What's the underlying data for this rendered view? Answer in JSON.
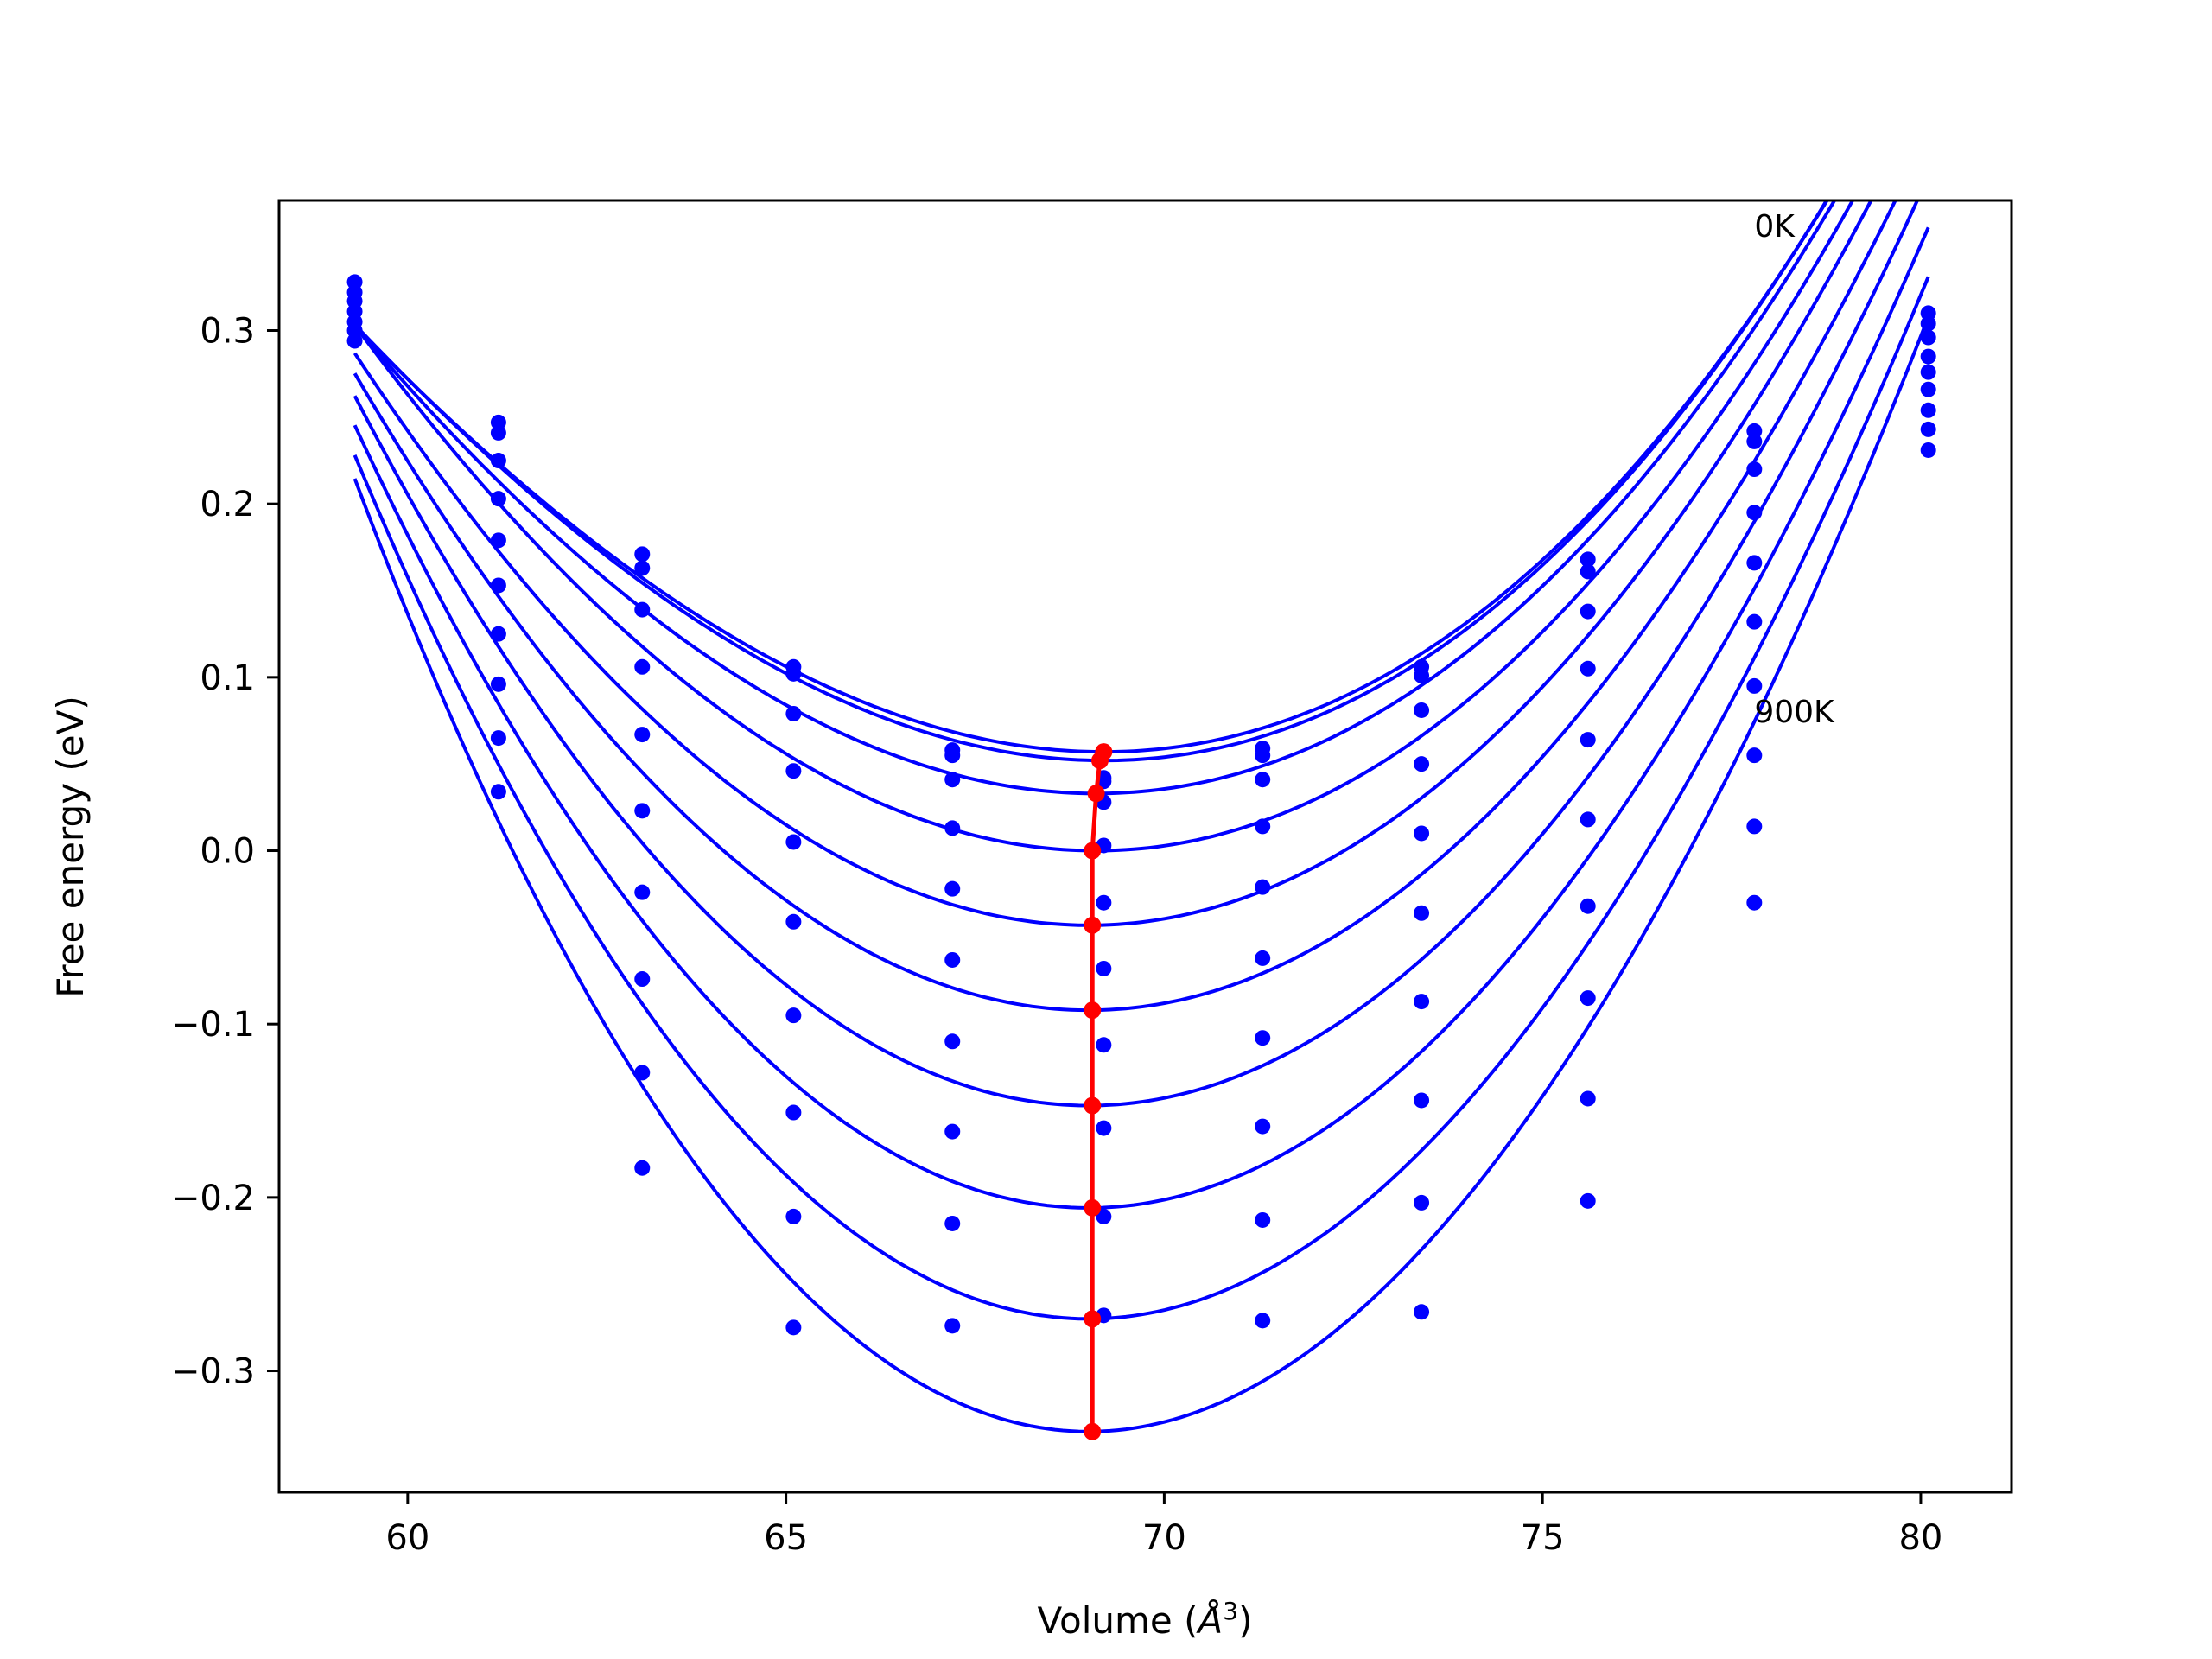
{
  "chart_data": {
    "type": "scatter",
    "title": "",
    "xlabel_prefix": "Volume (",
    "xlabel_unit": "Å",
    "xlabel_sup": "3",
    "xlabel_suffix": ")",
    "ylabel": "Free energy (eV)",
    "xlim": [
      58.3,
      81.2
    ],
    "ylim": [
      -0.37,
      0.375
    ],
    "xticks": [
      60,
      65,
      70,
      75,
      80
    ],
    "xtick_labels": [
      "60",
      "65",
      "70",
      "75",
      "80"
    ],
    "yticks": [
      -0.3,
      -0.2,
      -0.1,
      0.0,
      0.1,
      0.2,
      0.3
    ],
    "ytick_labels": [
      "−0.3",
      "−0.2",
      "−0.1",
      "0.0",
      "0.1",
      "0.2",
      "0.3"
    ],
    "grid": false,
    "colors": {
      "curves": "#0000ff",
      "points": "#0000ff",
      "minimum_path": "#ff0000"
    },
    "annotations": [
      {
        "text": "0K",
        "x": 77.8,
        "y": 0.36
      },
      {
        "text": "900K",
        "x": 77.8,
        "y": 0.08
      }
    ],
    "curve_xrange": [
      59.3,
      80.1
    ],
    "series": [
      {
        "V0": 69.2,
        "E0": 0.057,
        "A": 0.003,
        "B": 5e-05,
        "points": [
          [
            59.3,
            0.328
          ],
          [
            61.2,
            0.247
          ],
          [
            63.1,
            0.171
          ],
          [
            65.1,
            0.106
          ],
          [
            67.2,
            0.058
          ],
          [
            69.2,
            0.042
          ],
          [
            71.3,
            0.059
          ],
          [
            73.4,
            0.106
          ],
          [
            75.6,
            0.168
          ],
          [
            77.8,
            0.242
          ],
          [
            80.1,
            0.31
          ]
        ]
      },
      {
        "V0": 69.2,
        "E0": 0.052,
        "A": 0.00306,
        "B": 5e-05,
        "points": [
          [
            59.3,
            0.322
          ],
          [
            61.2,
            0.241
          ],
          [
            63.1,
            0.163
          ],
          [
            65.1,
            0.102
          ],
          [
            67.2,
            0.055
          ],
          [
            69.2,
            0.04
          ],
          [
            71.3,
            0.055
          ],
          [
            73.4,
            0.101
          ],
          [
            75.6,
            0.161
          ],
          [
            77.8,
            0.236
          ],
          [
            80.1,
            0.304
          ]
        ]
      },
      {
        "V0": 69.1,
        "E0": 0.033,
        "A": 0.0032,
        "B": 4e-05,
        "points": [
          [
            59.3,
            0.317
          ],
          [
            61.2,
            0.225
          ],
          [
            63.1,
            0.139
          ],
          [
            65.1,
            0.079
          ],
          [
            67.2,
            0.041
          ],
          [
            69.2,
            0.028
          ],
          [
            71.3,
            0.041
          ],
          [
            73.4,
            0.081
          ],
          [
            75.6,
            0.138
          ],
          [
            77.8,
            0.22
          ],
          [
            80.1,
            0.296
          ]
        ]
      },
      {
        "V0": 69.1,
        "E0": 0.0,
        "A": 0.00345,
        "B": 3e-05,
        "points": [
          [
            59.3,
            0.311
          ],
          [
            61.2,
            0.203
          ],
          [
            63.1,
            0.106
          ],
          [
            65.1,
            0.046
          ],
          [
            67.2,
            0.013
          ],
          [
            69.2,
            0.003
          ],
          [
            71.3,
            0.014
          ],
          [
            73.4,
            0.05
          ],
          [
            75.6,
            0.105
          ],
          [
            77.8,
            0.195
          ],
          [
            80.1,
            0.285
          ]
        ]
      },
      {
        "V0": 69.0,
        "E0": -0.043,
        "A": 0.0037,
        "B": 2e-05,
        "points": [
          [
            59.3,
            0.305
          ],
          [
            61.2,
            0.179
          ],
          [
            63.1,
            0.067
          ],
          [
            65.1,
            0.005
          ],
          [
            67.2,
            -0.022
          ],
          [
            69.2,
            -0.03
          ],
          [
            71.3,
            -0.021
          ],
          [
            73.4,
            0.01
          ],
          [
            75.6,
            0.064
          ],
          [
            77.8,
            0.166
          ],
          [
            80.1,
            0.276
          ]
        ]
      },
      {
        "V0": 69.0,
        "E0": -0.092,
        "A": 0.004,
        "B": 1e-05,
        "points": [
          [
            59.3,
            0.3
          ],
          [
            61.2,
            0.153
          ],
          [
            63.1,
            0.023
          ],
          [
            65.1,
            -0.041
          ],
          [
            67.2,
            -0.063
          ],
          [
            69.2,
            -0.068
          ],
          [
            71.3,
            -0.062
          ],
          [
            73.4,
            -0.036
          ],
          [
            75.6,
            0.018
          ],
          [
            77.8,
            0.132
          ],
          [
            80.1,
            0.266
          ]
        ]
      },
      {
        "V0": 69.0,
        "E0": -0.147,
        "A": 0.00435,
        "B": 0.0,
        "points": [
          [
            59.3,
            0.294
          ],
          [
            61.2,
            0.125
          ],
          [
            63.1,
            -0.024
          ],
          [
            65.1,
            -0.095
          ],
          [
            67.2,
            -0.11
          ],
          [
            69.2,
            -0.112
          ],
          [
            71.3,
            -0.108
          ],
          [
            73.4,
            -0.087
          ],
          [
            75.6,
            -0.032
          ],
          [
            77.8,
            0.095
          ],
          [
            80.1,
            0.254
          ]
        ]
      },
      {
        "V0": 69.0,
        "E0": -0.206,
        "A": 0.0047,
        "B": -1e-05,
        "points": [
          [
            61.2,
            0.096
          ],
          [
            63.1,
            -0.074
          ],
          [
            65.1,
            -0.151
          ],
          [
            67.2,
            -0.162
          ],
          [
            69.2,
            -0.16
          ],
          [
            71.3,
            -0.159
          ],
          [
            73.4,
            -0.144
          ],
          [
            75.6,
            -0.085
          ],
          [
            77.8,
            0.055
          ],
          [
            80.1,
            0.243
          ]
        ]
      },
      {
        "V0": 69.0,
        "E0": -0.27,
        "A": 0.0051,
        "B": -2e-05,
        "points": [
          [
            61.2,
            0.065
          ],
          [
            63.1,
            -0.128
          ],
          [
            65.1,
            -0.211
          ],
          [
            67.2,
            -0.215
          ],
          [
            69.2,
            -0.211
          ],
          [
            71.3,
            -0.213
          ],
          [
            73.4,
            -0.203
          ],
          [
            75.6,
            -0.143
          ],
          [
            77.8,
            0.014
          ],
          [
            80.1,
            0.231
          ]
        ]
      },
      {
        "V0": 69.0,
        "E0": -0.335,
        "A": 0.00555,
        "B": -3e-05,
        "points": [
          [
            61.2,
            0.034
          ],
          [
            63.1,
            -0.183
          ],
          [
            65.1,
            -0.275
          ],
          [
            67.2,
            -0.274
          ],
          [
            69.2,
            -0.268
          ],
          [
            71.3,
            -0.271
          ],
          [
            73.4,
            -0.266
          ],
          [
            75.6,
            -0.202
          ],
          [
            77.8,
            -0.03
          ]
        ]
      }
    ],
    "minimum_path": [
      [
        69.2,
        0.057
      ],
      [
        69.15,
        0.052
      ],
      [
        69.1,
        0.033
      ],
      [
        69.05,
        0.0
      ],
      [
        69.05,
        -0.043
      ],
      [
        69.05,
        -0.092
      ],
      [
        69.05,
        -0.147
      ],
      [
        69.05,
        -0.206
      ],
      [
        69.05,
        -0.27
      ],
      [
        69.05,
        -0.335
      ]
    ]
  }
}
